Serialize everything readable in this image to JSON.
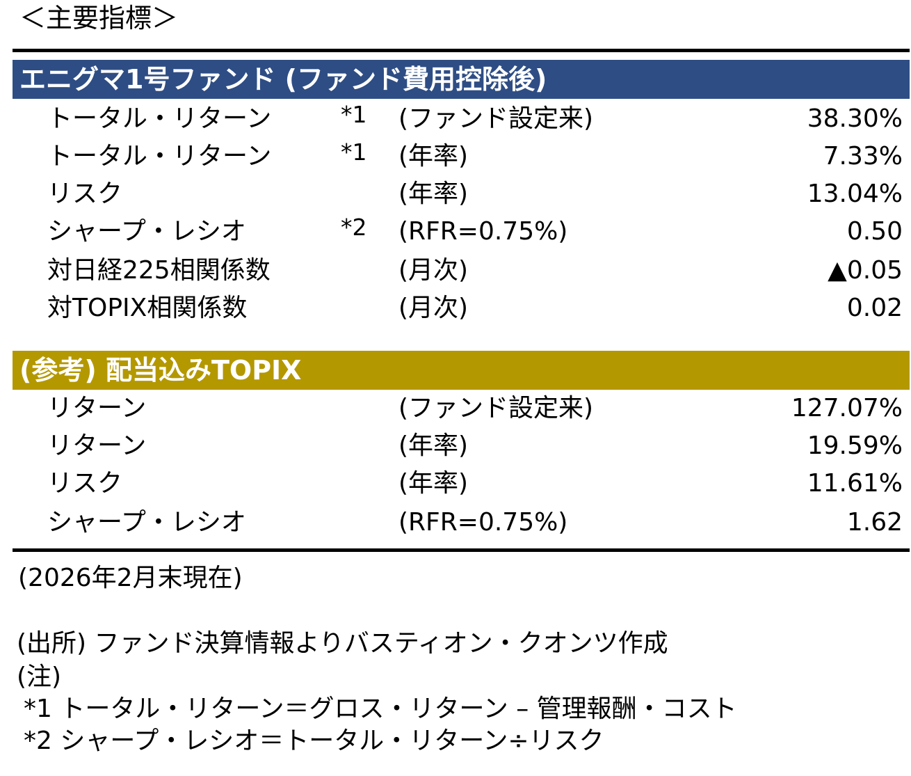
{
  "title": "＜主要指標＞",
  "colors": {
    "fund_header_bg": "#2e4d84",
    "reference_header_bg": "#b49800",
    "header_text": "#ffffff",
    "rule": "#000000"
  },
  "fund": {
    "header": "エニグマ1号ファンド (ファンド費用控除後)",
    "rows": [
      {
        "label": "トータル・リターン",
        "note": "*1",
        "period": "(ファンド設定来)",
        "value": "38.30%"
      },
      {
        "label": "トータル・リターン",
        "note": "*1",
        "period": "(年率)",
        "value": "7.33%"
      },
      {
        "label": "リスク",
        "note": "",
        "period": "(年率)",
        "value": "13.04%"
      },
      {
        "label": "シャープ・レシオ",
        "note": "*2",
        "period": "(RFR=0.75%)",
        "value": "0.50"
      },
      {
        "label": "対日経225相関係数",
        "note": "",
        "period": "(月次)",
        "value": "▲0.05"
      },
      {
        "label": "対TOPIX相関係数",
        "note": "",
        "period": "(月次)",
        "value": "0.02"
      }
    ]
  },
  "reference": {
    "header": "(参考) 配当込みTOPIX",
    "rows": [
      {
        "label": "リターン",
        "period": "(ファンド設定来)",
        "value": "127.07%"
      },
      {
        "label": "リターン",
        "period": "(年率)",
        "value": "19.59%"
      },
      {
        "label": "リスク",
        "period": "(年率)",
        "value": "11.61%"
      },
      {
        "label": "シャープ・レシオ",
        "period": "(RFR=0.75%)",
        "value": "1.62"
      }
    ]
  },
  "as_of": "(2026年2月末現在)",
  "footnotes": {
    "source": "(出所) ファンド決算情報よりバスティオン・クオンツ作成",
    "note_heading": "(注)",
    "note1": "*1 トータル・リターン＝グロス・リターン – 管理報酬・コスト",
    "note2": "*2 シャープ・レシオ＝トータル・リターン÷リスク"
  }
}
